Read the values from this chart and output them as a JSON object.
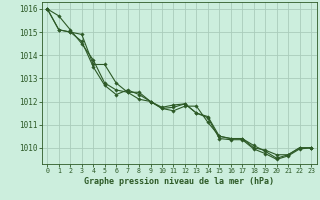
{
  "title": "Graphe pression niveau de la mer (hPa)",
  "bg_color": "#cceedd",
  "grid_color": "#aaccbb",
  "line_color": "#2d5a27",
  "marker_color": "#2d5a27",
  "xlim": [
    -0.5,
    23.5
  ],
  "ylim": [
    1009.3,
    1016.3
  ],
  "yticks": [
    1010,
    1011,
    1012,
    1013,
    1014,
    1015,
    1016
  ],
  "xticks": [
    0,
    1,
    2,
    3,
    4,
    5,
    6,
    7,
    8,
    9,
    10,
    11,
    12,
    13,
    14,
    15,
    16,
    17,
    18,
    19,
    20,
    21,
    22,
    23
  ],
  "series": [
    [
      1016.0,
      1015.7,
      1015.1,
      1014.5,
      1013.8,
      1012.8,
      1012.5,
      1012.4,
      1012.4,
      1012.0,
      1011.7,
      1011.6,
      1011.8,
      1011.8,
      1011.1,
      1010.5,
      1010.4,
      1010.4,
      1010.0,
      1009.9,
      1009.7,
      1009.7,
      1010.0,
      1010.0
    ],
    [
      1016.0,
      1015.1,
      1015.0,
      1014.6,
      1013.5,
      1012.7,
      1012.3,
      1012.5,
      1012.3,
      1012.0,
      1011.75,
      1011.85,
      1011.9,
      1011.5,
      1011.3,
      1010.4,
      1010.35,
      1010.35,
      1009.95,
      1009.75,
      1009.5,
      1009.65,
      1009.95,
      1010.0
    ],
    [
      1016.0,
      1015.1,
      1015.0,
      1014.9,
      1013.6,
      1013.6,
      1012.8,
      1012.4,
      1012.1,
      1012.0,
      1011.7,
      1011.75,
      1011.9,
      1011.5,
      1011.35,
      1010.5,
      1010.4,
      1010.4,
      1010.1,
      1009.85,
      1009.55,
      1009.7,
      1010.0,
      1010.0
    ]
  ],
  "xlabel_fontsize": 6.0,
  "ytick_fontsize": 5.5,
  "xtick_fontsize": 4.8
}
